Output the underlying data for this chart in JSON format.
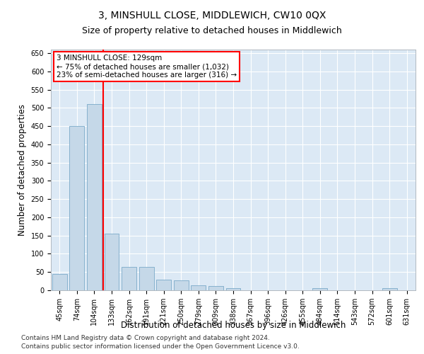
{
  "title": "3, MINSHULL CLOSE, MIDDLEWICH, CW10 0QX",
  "subtitle": "Size of property relative to detached houses in Middlewich",
  "xlabel": "Distribution of detached houses by size in Middlewich",
  "ylabel": "Number of detached properties",
  "categories": [
    "45sqm",
    "74sqm",
    "104sqm",
    "133sqm",
    "162sqm",
    "191sqm",
    "221sqm",
    "250sqm",
    "279sqm",
    "309sqm",
    "338sqm",
    "367sqm",
    "396sqm",
    "426sqm",
    "455sqm",
    "484sqm",
    "514sqm",
    "543sqm",
    "572sqm",
    "601sqm",
    "631sqm"
  ],
  "values": [
    45,
    450,
    510,
    155,
    65,
    65,
    30,
    28,
    14,
    12,
    5,
    0,
    0,
    0,
    0,
    5,
    0,
    0,
    0,
    5,
    0
  ],
  "bar_color": "#c5d8e8",
  "bar_edge_color": "#7aaac8",
  "annotation_line1": "3 MINSHULL CLOSE: 129sqm",
  "annotation_line2": "← 75% of detached houses are smaller (1,032)",
  "annotation_line3": "23% of semi-detached houses are larger (316) →",
  "ylim": [
    0,
    660
  ],
  "yticks": [
    0,
    50,
    100,
    150,
    200,
    250,
    300,
    350,
    400,
    450,
    500,
    550,
    600,
    650
  ],
  "plot_bg_color": "#dce9f5",
  "footer_line1": "Contains HM Land Registry data © Crown copyright and database right 2024.",
  "footer_line2": "Contains public sector information licensed under the Open Government Licence v3.0.",
  "grid_color": "#ffffff",
  "title_fontsize": 10,
  "subtitle_fontsize": 9,
  "axis_label_fontsize": 8.5,
  "tick_fontsize": 7,
  "annotation_fontsize": 7.5
}
